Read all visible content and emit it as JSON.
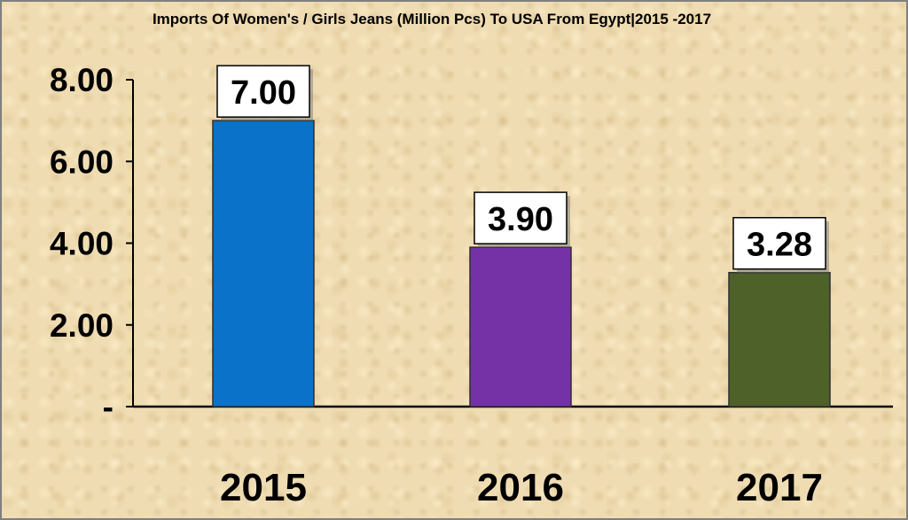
{
  "chart_data": {
    "type": "bar",
    "title": "Imports Of Women's / Girls Jeans (Million Pcs) To USA From Egypt|2015 -2017",
    "xlabel": "",
    "ylabel": "",
    "categories": [
      "2015",
      "2016",
      "2017"
    ],
    "values": [
      7.0,
      3.9,
      3.28
    ],
    "data_labels": [
      "7.00",
      "3.90",
      "3.28"
    ],
    "ylim": [
      0,
      8
    ],
    "y_ticks": [
      0,
      2,
      4,
      6,
      8
    ],
    "y_tick_labels": [
      "-",
      "2.00",
      "4.00",
      "6.00",
      "8.00"
    ],
    "bar_colors": [
      "#0a72c9",
      "#7531a6",
      "#4d6128"
    ],
    "grid": false,
    "legend": "none"
  }
}
